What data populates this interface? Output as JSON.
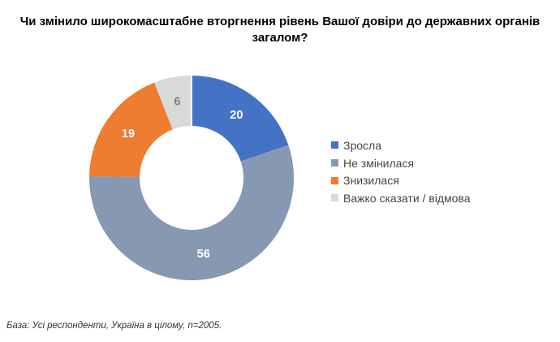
{
  "header": {
    "title_lines": [
      "Чи змінило широкомасштабне вторгнення рівень Вашої довіри до державних органів",
      "загалом?"
    ]
  },
  "chart_data": {
    "type": "pie",
    "subtype": "donut",
    "title": "Чи змінило широкомасштабне вторгнення рівень Вашої довіри до державних органів загалом?",
    "categories": [
      "Зросла",
      "Не змінилася",
      "Знизилася",
      "Важко сказати / відмова"
    ],
    "values": [
      20,
      56,
      19,
      6
    ],
    "units": "percent",
    "colors": [
      "#4472C4",
      "#8798B2",
      "#ED7D31",
      "#D9D9D9"
    ],
    "value_label_colors": [
      "#FFFFFF",
      "#FFFFFF",
      "#FFFFFF",
      "#808080"
    ],
    "start_angle_deg": 0,
    "direction": "clockwise",
    "inner_radius_ratio": 0.51,
    "legend_position": "right",
    "grid": false
  },
  "footer": {
    "base_note": "База: Усі респонденти, Україна в цілому, n=2005."
  }
}
